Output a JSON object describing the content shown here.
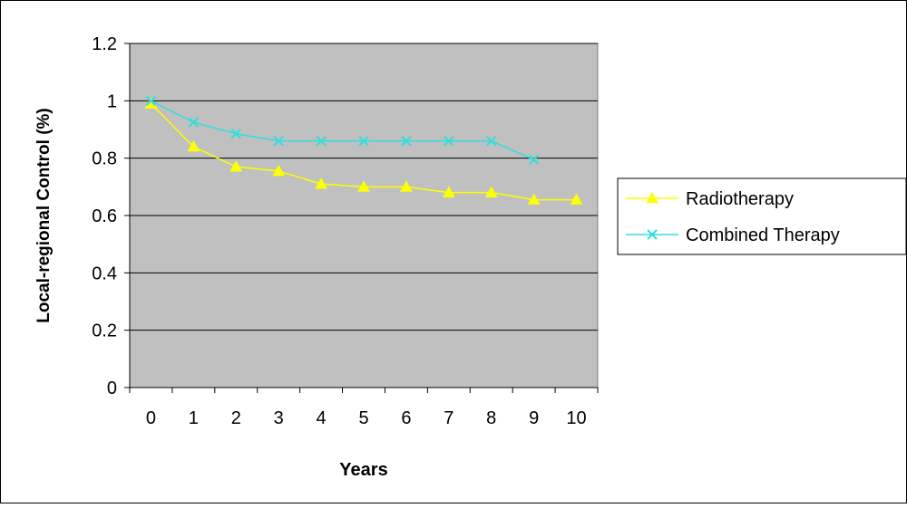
{
  "chart_data": {
    "type": "line",
    "x_label": "Years",
    "y_label": "Local-regional Control (%)",
    "categories": [
      "0",
      "1",
      "2",
      "3",
      "4",
      "5",
      "6",
      "7",
      "8",
      "9",
      "10"
    ],
    "ylim": [
      0,
      1.2
    ],
    "y_ticks": [
      "0",
      "0.2",
      "0.4",
      "0.6",
      "0.8",
      "1",
      "1.2"
    ],
    "grid": "horizontal",
    "legend_position": "right",
    "series": [
      {
        "name": "Radiotherapy",
        "color": "#ffff00",
        "marker": "triangle",
        "values": [
          0.99,
          0.84,
          0.77,
          0.755,
          0.71,
          0.7,
          0.7,
          0.68,
          0.68,
          0.655,
          0.655
        ]
      },
      {
        "name": "Combined Therapy",
        "color": "#33dddd",
        "marker": "x",
        "values": [
          1.0,
          0.925,
          0.885,
          0.86,
          0.86,
          0.86,
          0.86,
          0.86,
          0.86,
          0.795,
          null
        ]
      }
    ]
  },
  "colors": {
    "plot_background": "#c0c0c0",
    "gridline": "#000000",
    "frame": "#000000"
  }
}
